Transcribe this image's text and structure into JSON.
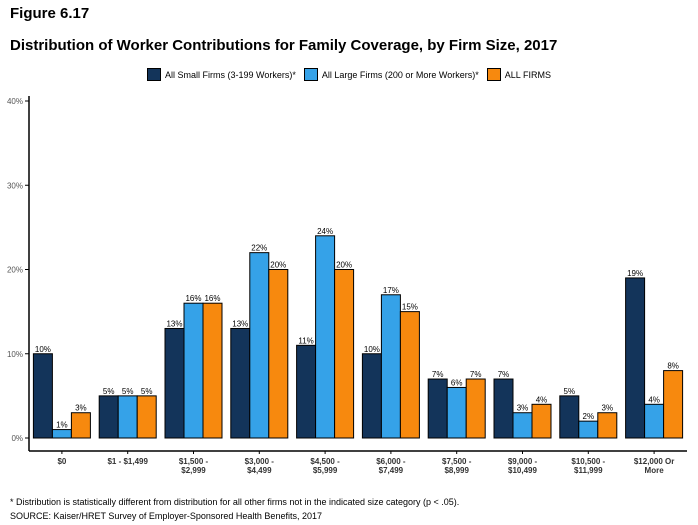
{
  "figure_label": "Figure 6.17",
  "figure_title": "Distribution of Worker Contributions for Family Coverage, by Firm Size, 2017",
  "footnote": "* Distribution is statistically different from distribution for all other firms not in the indicated size category (p < .05).",
  "source": "SOURCE: Kaiser/HRET Survey of Employer-Sponsored Health Benefits, 2017",
  "colors": {
    "small": "#13345a",
    "large": "#35a2e8",
    "all": "#f7890e"
  },
  "chart_data": {
    "type": "bar",
    "categories": [
      [
        "$0"
      ],
      [
        "$1 - $1,499"
      ],
      [
        "$1,500 -",
        "$2,999"
      ],
      [
        "$3,000 -",
        "$4,499"
      ],
      [
        "$4,500 -",
        "$5,999"
      ],
      [
        "$6,000 -",
        "$7,499"
      ],
      [
        "$7,500 -",
        "$8,999"
      ],
      [
        "$9,000 -",
        "$10,499"
      ],
      [
        "$10,500 -",
        "$11,999"
      ],
      [
        "$12,000 Or",
        "More"
      ]
    ],
    "series": [
      {
        "name": "All Small Firms (3-199 Workers)*",
        "key": "small",
        "values": [
          10,
          5,
          13,
          13,
          11,
          10,
          7,
          7,
          5,
          19
        ]
      },
      {
        "name": "All Large Firms (200 or More Workers)*",
        "key": "large",
        "values": [
          1,
          5,
          16,
          22,
          24,
          17,
          6,
          3,
          2,
          4
        ]
      },
      {
        "name": "ALL FIRMS",
        "key": "all",
        "values": [
          3,
          5,
          16,
          20,
          20,
          15,
          7,
          4,
          3,
          8
        ]
      }
    ],
    "yticks": [
      "0%",
      "10%",
      "20%",
      "30%",
      "40%"
    ],
    "ylim": [
      0,
      40
    ],
    "legend_position": "top-center",
    "grid": false
  }
}
